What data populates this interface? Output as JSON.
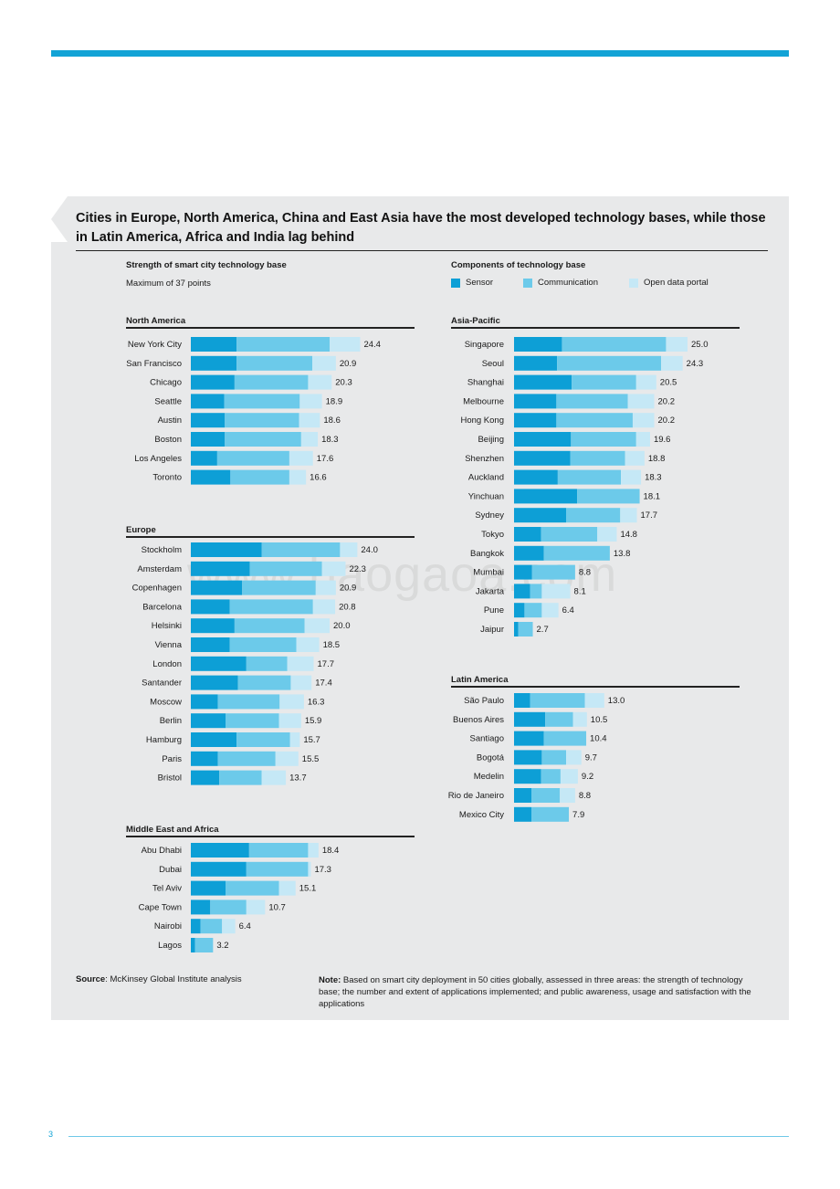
{
  "headline": "Cities in Europe, North America, China and East Asia have the most developed technology bases, while those in Latin America, Africa and India lag behind",
  "left_subtitle": "Strength of smart city technology base",
  "left_caption": "Maximum of 37 points",
  "right_subtitle": "Components of technology base",
  "legend": [
    {
      "label": "Sensor",
      "color": "#0d9fd6"
    },
    {
      "label": "Communication",
      "color": "#6ccaea"
    },
    {
      "label": "Open data portal",
      "color": "#c5e8f6"
    }
  ],
  "colors": {
    "sensor": "#0d9fd6",
    "communication": "#6ccaea",
    "open_data": "#c5e8f6",
    "accent": "#12a3d6",
    "panel": "#e8e9ea"
  },
  "chart_data": [
    {
      "type": "bar",
      "title": "North America",
      "categories": [
        "New York City",
        "San Francisco",
        "Chicago",
        "Seattle",
        "Austin",
        "Boston",
        "Los Angeles",
        "Toronto"
      ],
      "series": [
        {
          "name": "Sensor",
          "values": [
            6.6,
            6.6,
            6.3,
            4.8,
            4.9,
            4.9,
            3.8,
            5.7
          ]
        },
        {
          "name": "Communication",
          "values": [
            13.4,
            10.9,
            10.6,
            10.9,
            10.7,
            11.0,
            10.4,
            8.5
          ]
        },
        {
          "name": "Open data portal",
          "values": [
            4.4,
            3.4,
            3.4,
            3.2,
            3.0,
            2.4,
            3.4,
            2.4
          ]
        }
      ],
      "totals": [
        "24.4",
        "20.9",
        "20.3",
        "18.9",
        "18.6",
        "18.3",
        "17.6",
        "16.6"
      ],
      "xlim": [
        0,
        37
      ]
    },
    {
      "type": "bar",
      "title": "Europe",
      "categories": [
        "Stockholm",
        "Amsterdam",
        "Copenhagen",
        "Barcelona",
        "Helsinki",
        "Vienna",
        "London",
        "Santander",
        "Moscow",
        "Berlin",
        "Hamburg",
        "Paris",
        "Bristol"
      ],
      "series": [
        {
          "name": "Sensor",
          "values": [
            10.2,
            8.5,
            7.4,
            5.6,
            6.3,
            5.6,
            8.0,
            6.8,
            3.9,
            5.0,
            6.6,
            3.9,
            4.1
          ]
        },
        {
          "name": "Communication",
          "values": [
            11.3,
            10.4,
            10.6,
            12.0,
            10.1,
            9.6,
            5.9,
            7.6,
            8.9,
            7.7,
            7.7,
            8.3,
            6.1
          ]
        },
        {
          "name": "Open data portal",
          "values": [
            2.5,
            3.4,
            2.9,
            3.2,
            3.6,
            3.3,
            3.8,
            3.0,
            3.5,
            3.2,
            1.4,
            3.3,
            3.5
          ]
        }
      ],
      "totals": [
        "24.0",
        "22.3",
        "20.9",
        "20.8",
        "20.0",
        "18.5",
        "17.7",
        "17.4",
        "16.3",
        "15.9",
        "15.7",
        "15.5",
        "13.7"
      ],
      "xlim": [
        0,
        37
      ]
    },
    {
      "type": "bar",
      "title": "Middle East and Africa",
      "categories": [
        "Abu Dhabi",
        "Dubai",
        "Tel Aviv",
        "Cape Town",
        "Nairobi",
        "Lagos"
      ],
      "series": [
        {
          "name": "Sensor",
          "values": [
            8.4,
            8.0,
            5.0,
            2.8,
            1.4,
            0.6
          ]
        },
        {
          "name": "Communication",
          "values": [
            8.5,
            8.9,
            7.7,
            5.2,
            3.1,
            2.6
          ]
        },
        {
          "name": "Open data portal",
          "values": [
            1.5,
            0.4,
            2.4,
            2.7,
            1.9,
            0.0
          ]
        }
      ],
      "totals": [
        "18.4",
        "17.3",
        "15.1",
        "10.7",
        "6.4",
        "3.2"
      ],
      "xlim": [
        0,
        37
      ]
    },
    {
      "type": "bar",
      "title": "Asia-Pacific",
      "categories": [
        "Singapore",
        "Seoul",
        "Shanghai",
        "Melbourne",
        "Hong Kong",
        "Beijing",
        "Shenzhen",
        "Auckland",
        "Yinchuan",
        "Sydney",
        "Tokyo",
        "Bangkok",
        "Mumbai",
        "Jakarta",
        "Pune",
        "Jaipur"
      ],
      "series": [
        {
          "name": "Sensor",
          "values": [
            6.9,
            6.2,
            8.3,
            6.1,
            6.1,
            8.2,
            8.1,
            6.3,
            9.1,
            7.5,
            3.9,
            4.3,
            2.6,
            2.3,
            1.5,
            0.6
          ]
        },
        {
          "name": "Communication",
          "values": [
            15.0,
            15.0,
            9.3,
            10.3,
            11.0,
            9.4,
            7.9,
            9.1,
            9.0,
            7.8,
            8.1,
            9.5,
            6.2,
            1.7,
            2.5,
            2.1
          ]
        },
        {
          "name": "Open data portal",
          "values": [
            3.1,
            3.1,
            2.9,
            3.8,
            3.1,
            2.0,
            2.8,
            2.9,
            0.0,
            2.4,
            2.8,
            0.0,
            0.0,
            4.1,
            2.4,
            0.0
          ]
        }
      ],
      "totals": [
        "25.0",
        "24.3",
        "20.5",
        "20.2",
        "20.2",
        "19.6",
        "18.8",
        "18.3",
        "18.1",
        "17.7",
        "14.8",
        "13.8",
        "8.8",
        "8.1",
        "6.4",
        "2.7"
      ],
      "xlim": [
        0,
        37
      ]
    },
    {
      "type": "bar",
      "title": "Latin America",
      "categories": [
        "São Paulo",
        "Buenos Aires",
        "Santiago",
        "Bogotá",
        "Medelin",
        "Rio de Janeiro",
        "Mexico City"
      ],
      "series": [
        {
          "name": "Sensor",
          "values": [
            2.3,
            4.5,
            4.3,
            4.0,
            3.9,
            2.5,
            2.5
          ]
        },
        {
          "name": "Communication",
          "values": [
            7.9,
            4.0,
            6.1,
            3.5,
            2.8,
            4.1,
            5.4
          ]
        },
        {
          "name": "Open data portal",
          "values": [
            2.8,
            2.0,
            0.0,
            2.2,
            2.5,
            2.2,
            0.0
          ]
        }
      ],
      "totals": [
        "13.0",
        "10.5",
        "10.4",
        "9.7",
        "9.2",
        "8.8",
        "7.9"
      ],
      "xlim": [
        0,
        37
      ]
    }
  ],
  "source_label": "Source",
  "source_text": ": McKinsey Global Institute analysis",
  "note_label": "Note:",
  "note_text": " Based on smart city deployment in 50 cities globally, assessed in three areas: the strength of technology base; the number and extent of applications implemented; and public awareness, usage and satisfaction with the applications",
  "watermark": "www.baogaoa.com",
  "page_number": "3"
}
